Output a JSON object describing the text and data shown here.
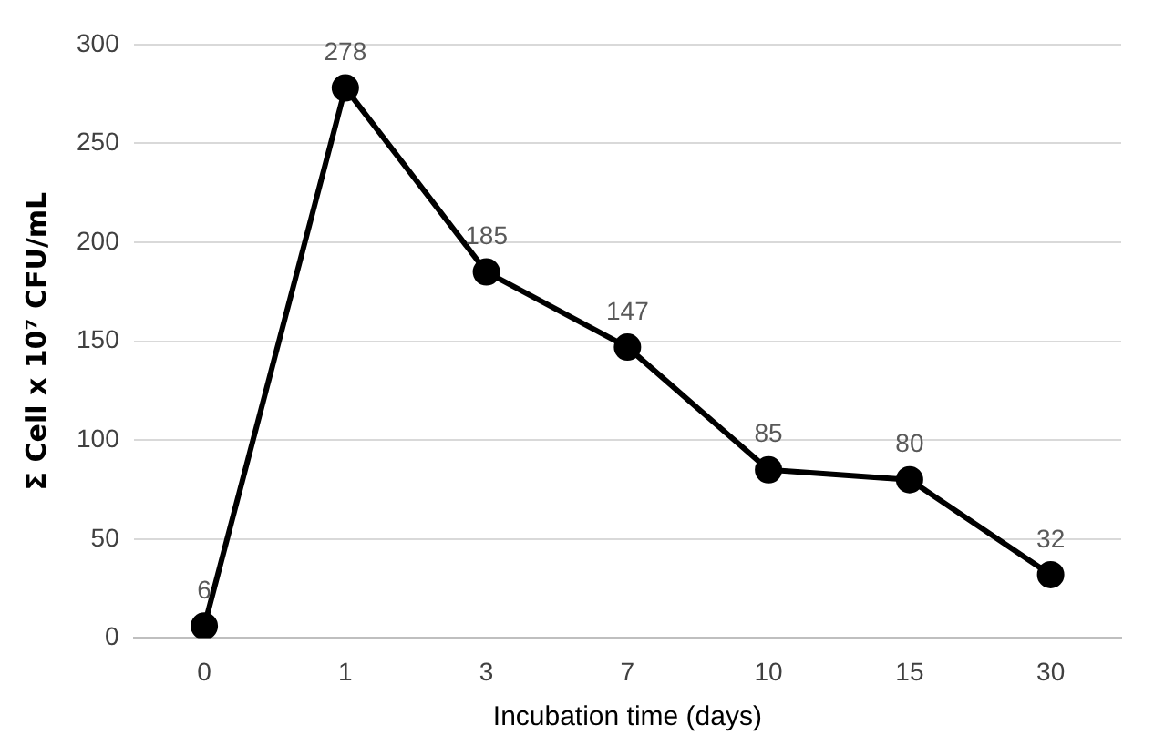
{
  "chart_data": {
    "type": "line",
    "xlabel": "Incubation time (days)",
    "ylabel": "Σ Cell x 10⁷ CFU/mL",
    "categories": [
      "0",
      "1",
      "3",
      "7",
      "10",
      "15",
      "30"
    ],
    "series": [
      {
        "color": "#000000",
        "values": [
          6,
          278,
          185,
          147,
          85,
          80,
          32
        ]
      }
    ],
    "ylim": [
      0,
      300
    ],
    "yticks": [
      0,
      50,
      100,
      150,
      200,
      250,
      300
    ],
    "grid": "y",
    "marker": "circle",
    "line_style": "solid",
    "data_labels": true,
    "legend": false
  }
}
